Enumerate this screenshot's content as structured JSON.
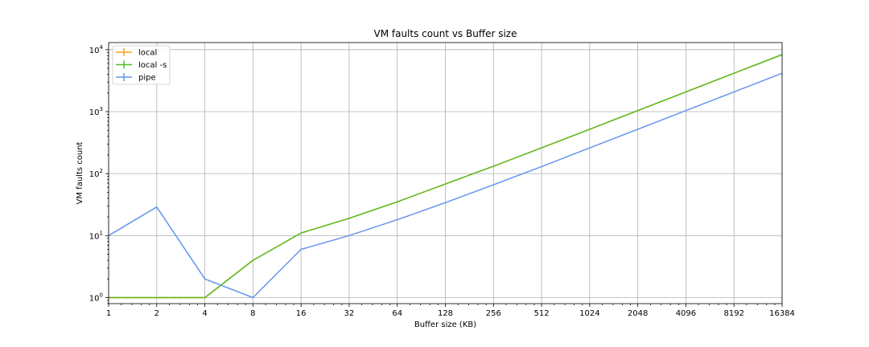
{
  "chart_data": {
    "type": "line",
    "title": "VM faults count vs Buffer size",
    "xlabel": "Buffer size (KB)",
    "ylabel": "VM faults count",
    "x_scale": "log2",
    "y_scale": "log10",
    "x": [
      1,
      2,
      4,
      8,
      16,
      32,
      64,
      128,
      256,
      512,
      1024,
      2048,
      4096,
      8192,
      16384
    ],
    "x_tick_labels": [
      "1",
      "2",
      "4",
      "8",
      "16",
      "32",
      "64",
      "128",
      "256",
      "512",
      "1024",
      "2048",
      "4096",
      "8192",
      "16384"
    ],
    "y_ticks": [
      {
        "base": "10",
        "exp": "0"
      },
      {
        "base": "10",
        "exp": "1"
      },
      {
        "base": "10",
        "exp": "2"
      },
      {
        "base": "10",
        "exp": "3"
      },
      {
        "base": "10",
        "exp": "4"
      }
    ],
    "xlim": [
      1,
      16384
    ],
    "ylim": [
      0.8,
      13000
    ],
    "grid": true,
    "legend_position": "top-left",
    "series": [
      {
        "name": "local",
        "color": "#ff9f1c",
        "values": [
          1,
          1,
          1,
          4,
          11,
          19,
          35,
          68,
          132,
          260,
          520,
          1040,
          2080,
          4160,
          8320
        ]
      },
      {
        "name": "local -s",
        "color": "#55bb22",
        "values": [
          1,
          1,
          1,
          4,
          11,
          19,
          35,
          68,
          132,
          260,
          520,
          1040,
          2080,
          4160,
          8320
        ]
      },
      {
        "name": "pipe",
        "color": "#6495ed",
        "values": [
          10,
          29,
          2,
          1,
          6,
          10,
          18,
          34,
          66,
          130,
          260,
          520,
          1040,
          2080,
          4160
        ]
      }
    ]
  }
}
